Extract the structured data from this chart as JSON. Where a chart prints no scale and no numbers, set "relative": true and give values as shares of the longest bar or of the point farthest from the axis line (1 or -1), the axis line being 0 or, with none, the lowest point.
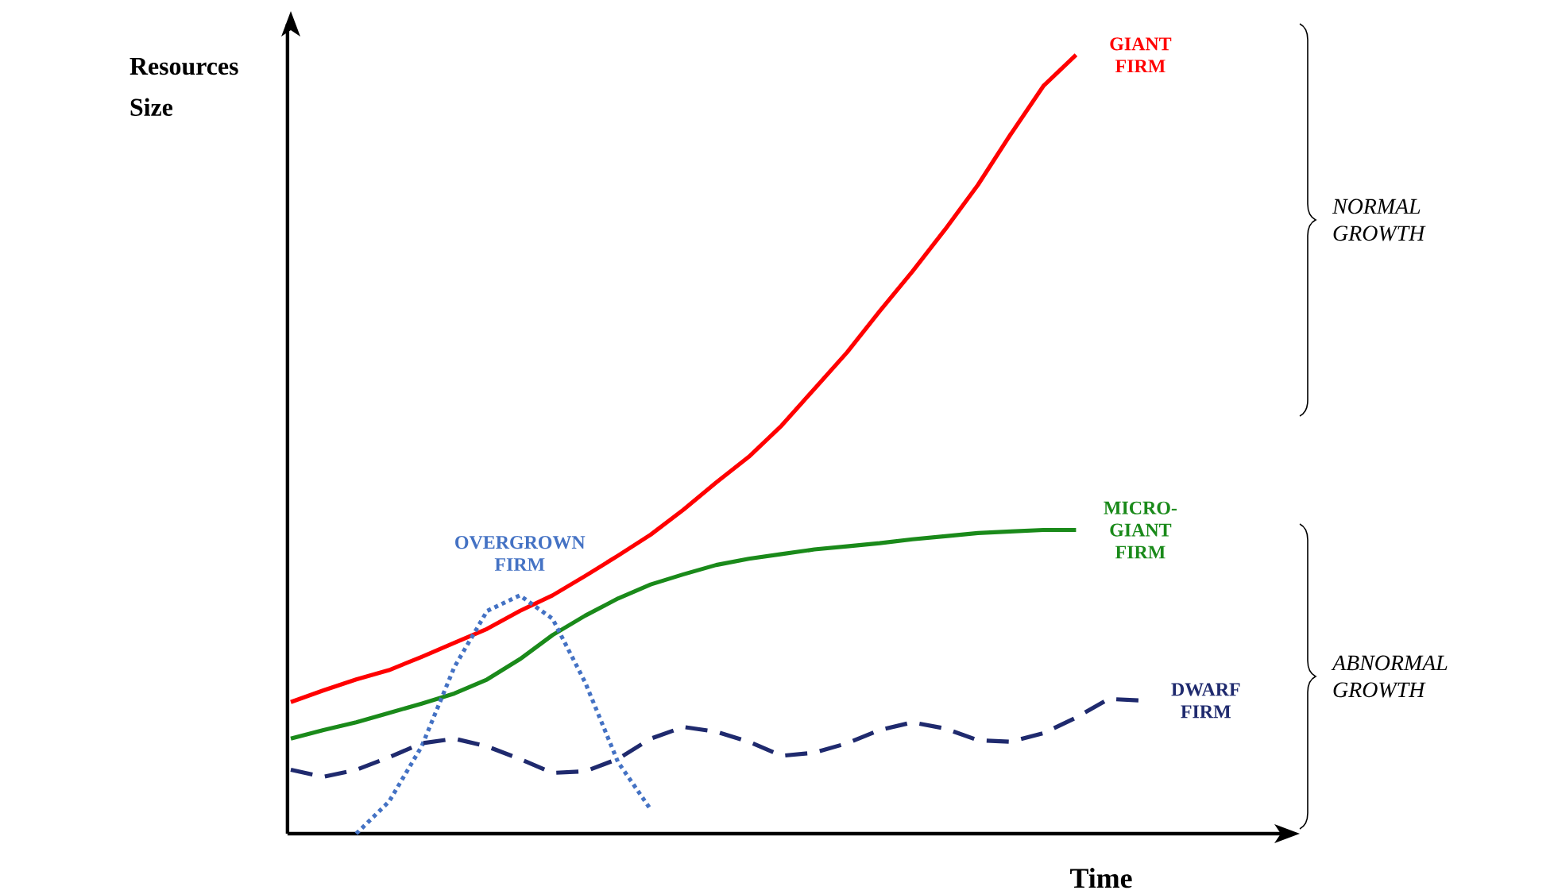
{
  "chart_data": {
    "type": "line",
    "relative": true,
    "xlabel": "Time",
    "ylabel": "Resources Size",
    "categories": [
      null,
      null,
      null,
      null,
      null,
      null,
      null,
      null,
      null,
      null,
      null,
      null,
      null,
      null,
      null,
      null,
      null,
      null,
      null,
      null,
      null,
      null,
      null,
      null,
      null,
      null,
      null
    ],
    "series": [
      {
        "name": "GIANT FIRM",
        "color": "#ff0000",
        "line_style": "solid",
        "values": [
          0.169,
          0.184,
          0.198,
          0.21,
          0.227,
          0.245,
          0.263,
          0.286,
          0.306,
          0.331,
          0.357,
          0.384,
          0.416,
          0.451,
          0.484,
          0.524,
          0.571,
          0.618,
          0.671,
          0.722,
          0.776,
          0.833,
          0.898,
          0.96,
          1.0,
          null,
          null
        ]
      },
      {
        "name": "MICRO-GIANT FIRM",
        "color": "#1a8a1a",
        "line_style": "solid",
        "values": [
          0.122,
          0.133,
          0.143,
          0.155,
          0.167,
          0.18,
          0.198,
          0.224,
          0.255,
          0.28,
          0.302,
          0.32,
          0.333,
          0.345,
          0.353,
          0.359,
          0.365,
          0.369,
          0.373,
          0.378,
          0.382,
          0.386,
          0.388,
          0.39,
          0.39,
          null,
          null
        ]
      },
      {
        "name": "OVERGROWN FIRM",
        "color": "#4472c4",
        "line_style": "dotted",
        "values": [
          null,
          null,
          0.0,
          0.041,
          0.112,
          0.214,
          0.286,
          0.306,
          0.276,
          0.194,
          0.092,
          0.031,
          null,
          null,
          null,
          null,
          null,
          null,
          null,
          null,
          null,
          null,
          null,
          null,
          null,
          null,
          null
        ]
      },
      {
        "name": "DWARF FIRM",
        "color": "#1f2a6e",
        "line_style": "dashed",
        "values": [
          0.082,
          0.073,
          0.082,
          0.098,
          0.116,
          0.122,
          0.112,
          0.096,
          0.078,
          0.08,
          0.096,
          0.122,
          0.137,
          0.131,
          0.118,
          0.1,
          0.104,
          0.116,
          0.133,
          0.143,
          0.135,
          0.12,
          0.118,
          0.129,
          0.149,
          0.173,
          0.171
        ]
      }
    ],
    "annotations": [
      "NORMAL GROWTH",
      "ABNORMAL GROWTH"
    ]
  }
}
